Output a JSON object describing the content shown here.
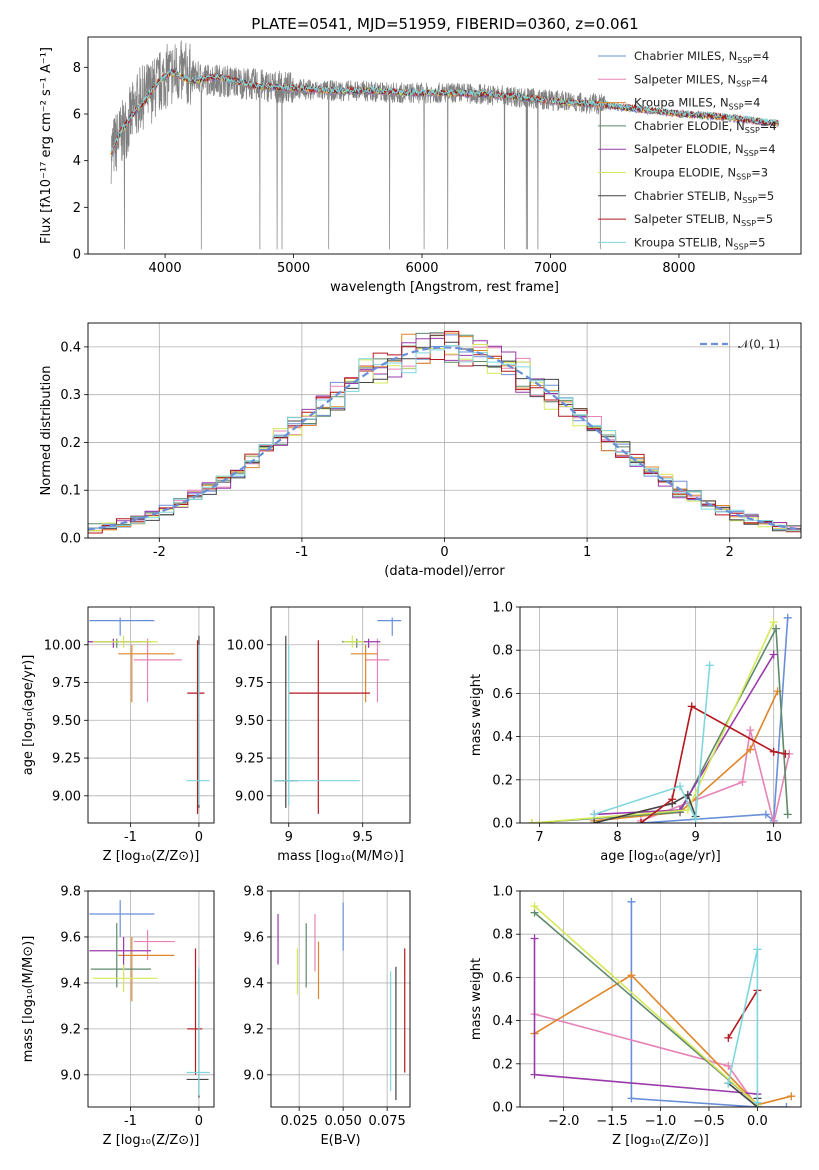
{
  "figure": {
    "title": "PLATE=0541, MJD=51959, FIBERID=0360, z=0.061"
  },
  "colors": {
    "Chabrier MILES": "#6a8fd9",
    "Salpeter MILES": "#e783b6",
    "Kroupa MILES": "#e0862a",
    "Chabrier ELODIE": "#5e8a6a",
    "Salpeter ELODIE": "#9a3aab",
    "Kroupa ELODIE": "#d6e85a",
    "Chabrier STELIB": "#444444",
    "Salpeter STELIB": "#b3191f",
    "Kroupa STELIB": "#7fd6dc"
  },
  "chart_data": [
    {
      "id": "spectrum",
      "type": "line",
      "title": "PLATE=0541, MJD=51959, FIBERID=0360, z=0.061",
      "xlabel": "wavelength [Angstrom, rest frame]",
      "ylabel": "Flux [fλ10⁻¹⁷ erg cm⁻² s⁻¹ A⁻¹]",
      "xlim": [
        3400,
        8950
      ],
      "ylim": [
        0,
        9.3
      ],
      "xticks": [
        4000,
        5000,
        6000,
        7000,
        8000
      ],
      "yticks": [
        0,
        2,
        4,
        6,
        8
      ],
      "legend": [
        {
          "name": "Chabrier MILES",
          "nssp": "4"
        },
        {
          "name": "Salpeter MILES",
          "nssp": "4"
        },
        {
          "name": "Kroupa MILES",
          "nssp": "4"
        },
        {
          "name": "Chabrier ELODIE",
          "nssp": "4"
        },
        {
          "name": "Salpeter ELODIE",
          "nssp": "4"
        },
        {
          "name": "Kroupa ELODIE",
          "nssp": "3"
        },
        {
          "name": "Chabrier STELIB",
          "nssp": "5"
        },
        {
          "name": "Salpeter STELIB",
          "nssp": "5"
        },
        {
          "name": "Kroupa STELIB",
          "nssp": "5"
        }
      ],
      "legend_loc": "upper right",
      "data_envelope": {
        "x": [
          3580,
          3700,
          3800,
          3900,
          4000,
          4100,
          4300,
          4500,
          4800,
          5000,
          5200,
          5500,
          5800,
          6000,
          6300,
          6600,
          6800,
          7000,
          7200,
          7430
        ],
        "y": [
          4.4,
          5.5,
          6.6,
          7.0,
          7.6,
          7.8,
          7.5,
          7.4,
          7.2,
          7.1,
          7.0,
          7.0,
          6.9,
          6.9,
          6.9,
          6.8,
          6.7,
          6.6,
          6.5,
          6.4
        ]
      },
      "model_x": [
        3580,
        3650,
        3750,
        3850,
        3950,
        4050,
        4200,
        4400,
        4700,
        5000,
        5300,
        5600,
        5900,
        6200,
        6500,
        6800,
        7100,
        7400,
        7700,
        8000,
        8300,
        8600,
        8780
      ],
      "model_y": [
        4.3,
        5.2,
        6.0,
        6.6,
        7.4,
        7.8,
        7.4,
        7.6,
        7.2,
        7.1,
        7.0,
        7.0,
        6.9,
        6.9,
        6.85,
        6.7,
        6.5,
        6.4,
        6.2,
        6.0,
        5.9,
        5.7,
        5.6
      ]
    },
    {
      "id": "residuals",
      "type": "line",
      "xlabel": "(data-model)/error",
      "ylabel": "Normed distribution",
      "xlim": [
        -2.5,
        2.5
      ],
      "ylim": [
        0,
        0.45
      ],
      "xticks": [
        -2,
        -1,
        0,
        1,
        2
      ],
      "yticks": [
        0.0,
        0.1,
        0.2,
        0.3,
        0.4
      ],
      "grid": true,
      "legend": [
        "𝒩(0, 1)"
      ],
      "legend_loc": "upper right",
      "gaussian": {
        "mean": 0,
        "sigma": 1,
        "color": "#6a8fd9"
      }
    },
    {
      "id": "age_vs_Z",
      "type": "scatter",
      "xlabel": "Z [log₁₀(Z/Z⊙)]",
      "ylabel": "age  [log₁₀(age/yr)]",
      "xlim": [
        -1.62,
        0.22
      ],
      "ylim": [
        8.82,
        10.25
      ],
      "xticks": [
        -1,
        0
      ],
      "yticks": [
        9.0,
        9.25,
        9.5,
        9.75,
        10.0
      ],
      "points": [
        {
          "model": "Chabrier MILES",
          "x": -1.15,
          "y": 10.16,
          "xerr": [
            0.45,
            0.5
          ],
          "yerr": [
            0.1,
            0.02
          ]
        },
        {
          "model": "Salpeter MILES",
          "x": -0.75,
          "y": 9.9,
          "xerr": [
            0.2,
            0.5
          ],
          "yerr": [
            0.28,
            0.14
          ]
        },
        {
          "model": "Kroupa MILES",
          "x": -0.98,
          "y": 9.94,
          "xerr": [
            0.2,
            0.62
          ],
          "yerr": [
            0.32,
            0.06
          ]
        },
        {
          "model": "Chabrier ELODIE",
          "x": -1.2,
          "y": 10.02,
          "xerr": [
            0.38,
            0.5
          ],
          "yerr": [
            0.04,
            0.02
          ]
        },
        {
          "model": "Salpeter ELODIE",
          "x": -1.25,
          "y": 10.02,
          "xerr": [
            0.38,
            0.4
          ],
          "yerr": [
            0.04,
            0.02
          ]
        },
        {
          "model": "Kroupa ELODIE",
          "x": -1.1,
          "y": 10.02,
          "xerr": [
            0.45,
            0.5
          ],
          "yerr": [
            0.04,
            0.04
          ]
        },
        {
          "model": "Chabrier STELIB",
          "x": 0.0,
          "y": 9.1,
          "xerr": [
            0.02,
            0.02
          ],
          "yerr": [
            0.18,
            0.96
          ]
        },
        {
          "model": "Salpeter STELIB",
          "x": -0.02,
          "y": 9.68,
          "xerr": [
            0.15,
            0.1
          ],
          "yerr": [
            0.8,
            0.35
          ]
        },
        {
          "model": "Kroupa STELIB",
          "x": 0.0,
          "y": 9.1,
          "xerr": [
            0.18,
            0.16
          ],
          "yerr": [
            0.16,
            0.9
          ]
        }
      ]
    },
    {
      "id": "age_vs_mass",
      "type": "scatter",
      "xlabel": "mass [log₁₀(M/M⊙)]",
      "ylabel": "",
      "xlim": [
        8.88,
        9.82
      ],
      "ylim": [
        8.82,
        10.25
      ],
      "xticks": [
        9.0,
        9.5
      ],
      "yticks": [
        9.0,
        9.25,
        9.5,
        9.75,
        10.0
      ],
      "points": [
        {
          "model": "Chabrier MILES",
          "x": 9.7,
          "y": 10.16,
          "xerr": [
            0.1,
            0.06
          ],
          "yerr": [
            0.1,
            0.02
          ]
        },
        {
          "model": "Salpeter MILES",
          "x": 9.6,
          "y": 9.9,
          "xerr": [
            0.08,
            0.08
          ],
          "yerr": [
            0.28,
            0.14
          ]
        },
        {
          "model": "Kroupa MILES",
          "x": 9.52,
          "y": 9.94,
          "xerr": [
            0.1,
            0.08
          ],
          "yerr": [
            0.32,
            0.06
          ]
        },
        {
          "model": "Chabrier ELODIE",
          "x": 9.46,
          "y": 10.02,
          "xerr": [
            0.1,
            0.06
          ],
          "yerr": [
            0.04,
            0.02
          ]
        },
        {
          "model": "Salpeter ELODIE",
          "x": 9.54,
          "y": 10.02,
          "xerr": [
            0.05,
            0.08
          ],
          "yerr": [
            0.04,
            0.02
          ]
        },
        {
          "model": "Kroupa ELODIE",
          "x": 9.43,
          "y": 10.02,
          "xerr": [
            0.06,
            0.08
          ],
          "yerr": [
            0.04,
            0.04
          ]
        },
        {
          "model": "Chabrier STELIB",
          "x": 8.98,
          "y": 9.1,
          "xerr": [
            0.08,
            0.08
          ],
          "yerr": [
            0.18,
            0.96
          ]
        },
        {
          "model": "Salpeter STELIB",
          "x": 9.2,
          "y": 9.68,
          "xerr": [
            0.2,
            0.35
          ],
          "yerr": [
            0.8,
            0.35
          ]
        },
        {
          "model": "Kroupa STELIB",
          "x": 9.0,
          "y": 9.1,
          "xerr": [
            0.1,
            0.48
          ],
          "yerr": [
            0.16,
            0.9
          ]
        }
      ]
    },
    {
      "id": "weight_vs_age",
      "type": "line",
      "xlabel": "age  [log₁₀(age/yr)]",
      "ylabel": "mass weight",
      "xlim": [
        6.75,
        10.35
      ],
      "ylim": [
        0,
        1.0
      ],
      "xticks": [
        7,
        8,
        9,
        10
      ],
      "yticks": [
        0.0,
        0.2,
        0.4,
        0.6,
        0.8,
        1.0
      ],
      "grid": true,
      "series": [
        {
          "model": "Chabrier MILES",
          "x": [
            8.3,
            9.9,
            10.0,
            10.18
          ],
          "y": [
            0.0,
            0.04,
            0.01,
            0.95
          ]
        },
        {
          "model": "Salpeter MILES",
          "x": [
            8.3,
            9.6,
            9.7,
            10.0,
            10.2
          ],
          "y": [
            0.01,
            0.19,
            0.43,
            0.0,
            0.32
          ]
        },
        {
          "model": "Kroupa MILES",
          "x": [
            7.7,
            8.8,
            9.7,
            10.05
          ],
          "y": [
            0.01,
            0.05,
            0.34,
            0.61
          ]
        },
        {
          "model": "Chabrier ELODIE",
          "x": [
            6.9,
            8.8,
            10.03,
            10.18
          ],
          "y": [
            0.0,
            0.05,
            0.9,
            0.04
          ]
        },
        {
          "model": "Salpeter ELODIE",
          "x": [
            7.7,
            8.8,
            10.0
          ],
          "y": [
            0.04,
            0.06,
            0.78
          ]
        },
        {
          "model": "Kroupa ELODIE",
          "x": [
            6.9,
            8.9,
            10.0
          ],
          "y": [
            0.0,
            0.06,
            0.93
          ]
        },
        {
          "model": "Chabrier STELIB",
          "x": [
            7.7,
            8.7,
            8.9,
            9.0
          ],
          "y": [
            0.0,
            0.09,
            0.13,
            0.03
          ]
        },
        {
          "model": "Salpeter STELIB",
          "x": [
            8.3,
            8.7,
            8.95,
            10.0,
            10.15
          ],
          "y": [
            0.0,
            0.11,
            0.54,
            0.33,
            0.32
          ]
        },
        {
          "model": "Kroupa STELIB",
          "x": [
            7.7,
            8.8,
            9.0,
            9.18
          ],
          "y": [
            0.04,
            0.17,
            0.02,
            0.73
          ]
        }
      ]
    },
    {
      "id": "mass_vs_Z",
      "type": "scatter",
      "xlabel": "Z [log₁₀(Z/Z⊙)]",
      "ylabel": "mass [log₁₀(M/M⊙)]",
      "xlim": [
        -1.62,
        0.22
      ],
      "ylim": [
        8.86,
        9.8
      ],
      "xticks": [
        -1,
        0
      ],
      "yticks": [
        9.0,
        9.2,
        9.4,
        9.6,
        9.8
      ],
      "points": [
        {
          "model": "Chabrier MILES",
          "x": -1.15,
          "y": 9.7,
          "xerr": [
            0.45,
            0.5
          ],
          "yerr": [
            0.1,
            0.06
          ]
        },
        {
          "model": "Salpeter MILES",
          "x": -0.75,
          "y": 9.58,
          "xerr": [
            0.2,
            0.4
          ],
          "yerr": [
            0.08,
            0.05
          ]
        },
        {
          "model": "Kroupa MILES",
          "x": -0.98,
          "y": 9.52,
          "xerr": [
            0.2,
            0.62
          ],
          "yerr": [
            0.2,
            0.08
          ]
        },
        {
          "model": "Chabrier ELODIE",
          "x": -1.2,
          "y": 9.46,
          "xerr": [
            0.38,
            0.5
          ],
          "yerr": [
            0.08,
            0.2
          ]
        },
        {
          "model": "Salpeter ELODIE",
          "x": -1.1,
          "y": 9.54,
          "xerr": [
            0.5,
            0.4
          ],
          "yerr": [
            0.08,
            0.06
          ]
        },
        {
          "model": "Kroupa ELODIE",
          "x": -1.1,
          "y": 9.42,
          "xerr": [
            0.45,
            0.5
          ],
          "yerr": [
            0.06,
            0.06
          ]
        },
        {
          "model": "Chabrier STELIB",
          "x": 0.0,
          "y": 8.98,
          "xerr": [
            0.18,
            0.14
          ],
          "yerr": [
            0.08,
            0.48
          ]
        },
        {
          "model": "Salpeter STELIB",
          "x": -0.05,
          "y": 9.2,
          "xerr": [
            0.12,
            0.1
          ],
          "yerr": [
            0.2,
            0.35
          ]
        },
        {
          "model": "Kroupa STELIB",
          "x": 0.0,
          "y": 9.01,
          "xerr": [
            0.18,
            0.16
          ],
          "yerr": [
            0.1,
            0.46
          ]
        }
      ]
    },
    {
      "id": "mass_vs_EBV",
      "type": "scatter",
      "xlabel": "E(B-V)",
      "ylabel": "",
      "xlim": [
        0.009,
        0.088
      ],
      "ylim": [
        8.86,
        9.8
      ],
      "xticks": [
        0.025,
        0.05,
        0.075
      ],
      "xticklabels": [
        "0.025",
        "0.050",
        "0.075"
      ],
      "yticks": [
        9.0,
        9.2,
        9.4,
        9.6,
        9.8
      ],
      "points": [
        {
          "model": "Salpeter ELODIE",
          "x": 0.013,
          "y": 9.6,
          "yerr": [
            0.12,
            0.1
          ]
        },
        {
          "model": "Kroupa ELODIE",
          "x": 0.024,
          "y": 9.45,
          "yerr": [
            0.1,
            0.1
          ]
        },
        {
          "model": "Chabrier ELODIE",
          "x": 0.029,
          "y": 9.52,
          "yerr": [
            0.14,
            0.14
          ]
        },
        {
          "model": "Salpeter MILES",
          "x": 0.034,
          "y": 9.6,
          "yerr": [
            0.15,
            0.1
          ]
        },
        {
          "model": "Kroupa MILES",
          "x": 0.036,
          "y": 9.45,
          "yerr": [
            0.12,
            0.13
          ]
        },
        {
          "model": "Chabrier MILES",
          "x": 0.05,
          "y": 9.65,
          "yerr": [
            0.11,
            0.1
          ]
        },
        {
          "model": "Kroupa STELIB",
          "x": 0.077,
          "y": 9.19,
          "yerr": [
            0.26,
            0.26
          ]
        },
        {
          "model": "Chabrier STELIB",
          "x": 0.08,
          "y": 9.17,
          "yerr": [
            0.28,
            0.3
          ]
        },
        {
          "model": "Salpeter STELIB",
          "x": 0.085,
          "y": 9.28,
          "yerr": [
            0.27,
            0.27
          ]
        }
      ]
    },
    {
      "id": "weight_vs_Z",
      "type": "line",
      "xlabel": "Z [log₁₀(Z/Z⊙)]",
      "ylabel": "mass weight",
      "xlim": [
        -2.45,
        0.45
      ],
      "ylim": [
        0,
        1.0
      ],
      "xticks": [
        -2.0,
        -1.5,
        -1.0,
        -0.5,
        0.0
      ],
      "xticklabels": [
        "−2.0",
        "−1.5",
        "−1.0",
        "−0.5",
        "0.0"
      ],
      "yticks": [
        0.0,
        0.2,
        0.4,
        0.6,
        0.8,
        1.0
      ],
      "grid": true,
      "series": [
        {
          "model": "Chabrier MILES",
          "x": [
            -1.3,
            -1.3,
            -0.0,
            0.3
          ],
          "y": [
            0.95,
            0.04,
            0.0,
            0.0
          ]
        },
        {
          "model": "Salpeter MILES",
          "x": [
            -2.3,
            -0.3,
            0.0
          ],
          "y": [
            0.43,
            0.19,
            0.0
          ]
        },
        {
          "model": "Kroupa MILES",
          "x": [
            -2.3,
            -1.3,
            0.0,
            0.35
          ],
          "y": [
            0.34,
            0.61,
            0.01,
            0.05
          ]
        },
        {
          "model": "Chabrier ELODIE",
          "x": [
            -2.3,
            0.0
          ],
          "y": [
            0.9,
            0.01
          ]
        },
        {
          "model": "Salpeter ELODIE",
          "x": [
            -2.3,
            -2.3,
            0.0
          ],
          "y": [
            0.78,
            0.15,
            0.06
          ]
        },
        {
          "model": "Kroupa ELODIE",
          "x": [
            -2.3,
            0.0
          ],
          "y": [
            0.93,
            0.01
          ]
        },
        {
          "model": "Chabrier STELIB",
          "x": [
            -0.3,
            0.0,
            0.0
          ],
          "y": [
            0.11,
            0.0,
            0.04
          ]
        },
        {
          "model": "Salpeter STELIB",
          "x": [
            -0.3,
            0.0
          ],
          "y": [
            0.32,
            0.54
          ]
        },
        {
          "model": "Kroupa STELIB",
          "x": [
            -0.3,
            0.0,
            0.0
          ],
          "y": [
            0.11,
            0.73,
            0.02
          ]
        }
      ]
    }
  ]
}
